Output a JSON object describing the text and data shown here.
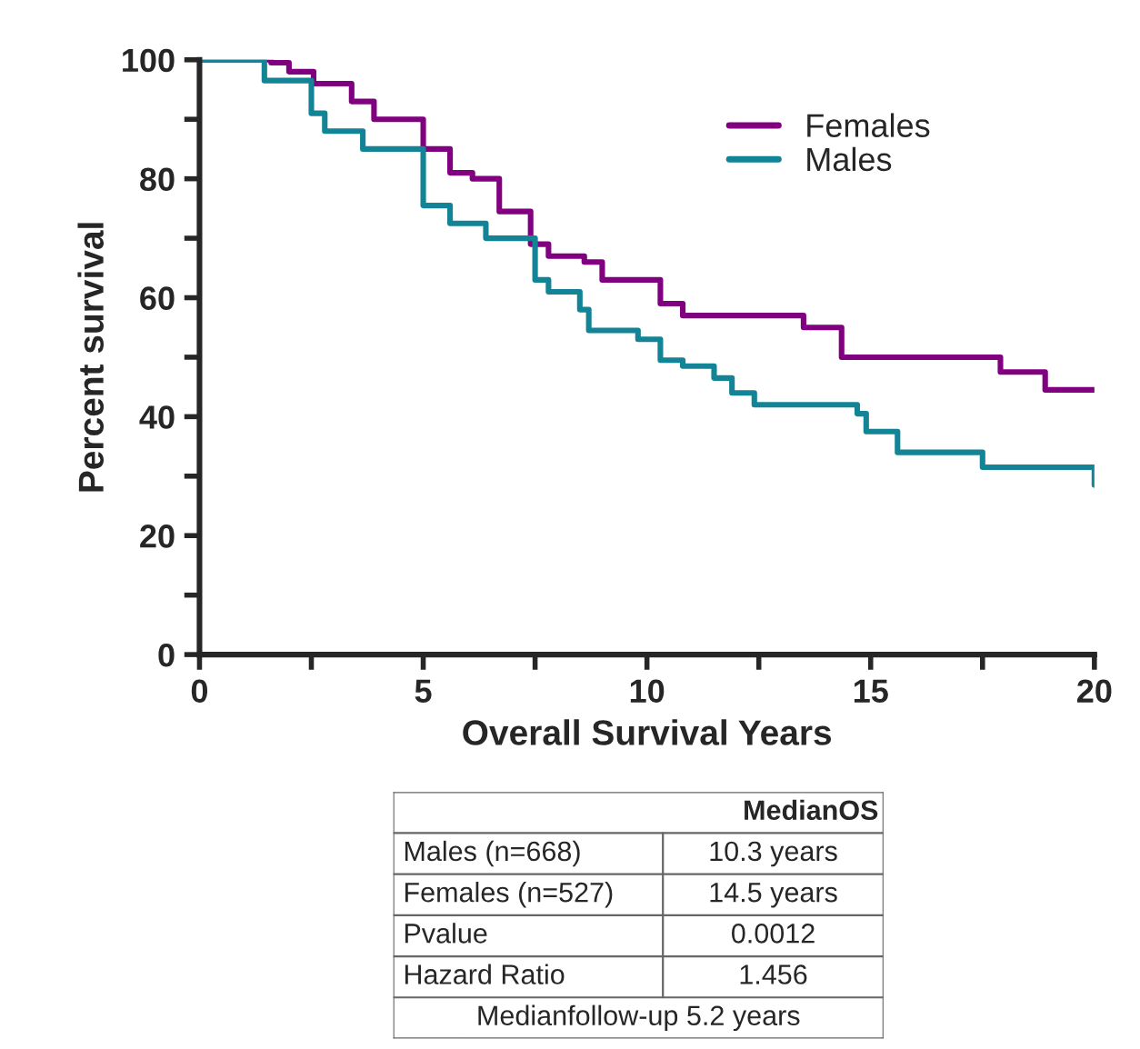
{
  "chart_data": {
    "type": "step",
    "xlabel": "Overall Survival Years",
    "ylabel": "Percent survival",
    "xlim": [
      0,
      20
    ],
    "xticks": [
      0,
      {
        "value": 2.5,
        "label": null
      },
      5,
      {
        "value": 7.5,
        "label": null
      },
      10,
      {
        "value": 12.5,
        "label": null
      },
      15,
      {
        "value": 17.5,
        "label": null
      },
      20
    ],
    "ylim": [
      0,
      100
    ],
    "yticks": [
      0,
      {
        "value": 10,
        "label": null
      },
      20,
      {
        "value": 30,
        "label": null
      },
      40,
      {
        "value": 50,
        "label": null
      },
      60,
      {
        "value": 70,
        "label": null
      },
      80,
      {
        "value": 90,
        "label": null
      },
      100
    ],
    "legend": "top right",
    "grid": false,
    "series": [
      {
        "name": "Females",
        "color": "#800080",
        "x": [
          0,
          1.6,
          2.0,
          2.55,
          3.4,
          3.9,
          5,
          5.6,
          6.1,
          6.7,
          7.4,
          7.8,
          8.6,
          9.0,
          10.3,
          10.8,
          13.5,
          14.35,
          17.9,
          18.9,
          20
        ],
        "values": [
          100,
          99.5,
          98,
          96,
          93,
          90,
          85,
          81,
          80,
          74.5,
          69,
          67,
          66,
          63,
          59,
          57,
          55,
          50,
          47.5,
          44.5,
          44.5
        ]
      },
      {
        "name": "Males",
        "color": "#128496",
        "x": [
          0,
          1.45,
          2.5,
          2.8,
          3.65,
          5,
          5.6,
          6.4,
          7.5,
          7.8,
          8.5,
          8.7,
          9.8,
          10.3,
          10.8,
          11.5,
          11.9,
          12.4,
          14.7,
          14.9,
          15.6,
          17.5,
          20
        ],
        "values": [
          100,
          96.5,
          91,
          88,
          85,
          75.5,
          72.5,
          70,
          63,
          61,
          58,
          54.5,
          53,
          49.5,
          48.5,
          46.5,
          44,
          42,
          40.5,
          37.5,
          34,
          31.5,
          28.5
        ]
      }
    ],
    "annotations": [
      "MedianOS",
      "Males (n=668)",
      "10.3 years",
      "Females (n=527)",
      "14.5 years",
      "Pvalue",
      "0.0012",
      "Hazard Ratio",
      "1.456",
      "Medianfollow-up 5.2 years"
    ]
  }
}
